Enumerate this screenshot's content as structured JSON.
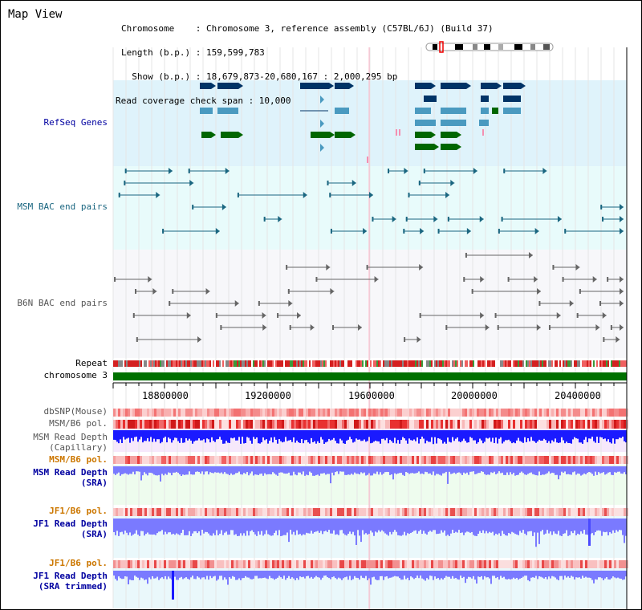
{
  "page": {
    "title": "Map View",
    "info_lines": [
      "Chromosome    : Chromosome 3, reference assembly (C57BL/6J) (Build 37)",
      "Length (b.p.) : 159,599,783",
      "  Show (b.p.) : 18,679,873-20,680,167 : 2,000,295 bp",
      "Read coverage check span : 10,000"
    ]
  },
  "tracks": {
    "refseq": "RefSeq Genes",
    "msm_bac": "MSM BAC end pairs",
    "b6n_bac": "B6N BAC end pairs",
    "repeat": "Repeat",
    "chromosome": "chromosome 3",
    "dbsnp": "dbSNP(Mouse)",
    "msm_b6_pol_1": "MSM/B6 pol.",
    "msm_depth_cap": "MSM Read Depth\n(Capillary)",
    "msm_b6_pol_2": "MSM/B6 pol.",
    "msm_depth_sra": "MSM Read Depth\n(SRA)",
    "jf1_b6_pol_1": "JF1/B6 pol.",
    "jf1_depth_sra": "JF1 Read Depth\n(SRA)",
    "jf1_b6_pol_2": "JF1/B6 pol.",
    "jf1_depth_trim": "JF1 Read Depth\n(SRA trimmed)"
  },
  "axis": {
    "ticks": [
      "18800000",
      "19200000",
      "19600000",
      "20000000",
      "20400000"
    ]
  },
  "colors": {
    "refseq_bg": "#dff3fb",
    "msm_bac_bg": "#e8fbfb",
    "b6n_bac_bg": "#f7f7fa",
    "chromosome": "#007000",
    "gene_dark": "#003366",
    "gene_mid": "#4a9ac0",
    "gene_green": "#006600",
    "msm_bac": "#1a6680",
    "b6n_bac": "#666666",
    "depth_capillary": "#1a1aff",
    "depth_sra": "#7a7aff",
    "label_orange": "#cc7700",
    "label_blue": "#0000a0"
  }
}
